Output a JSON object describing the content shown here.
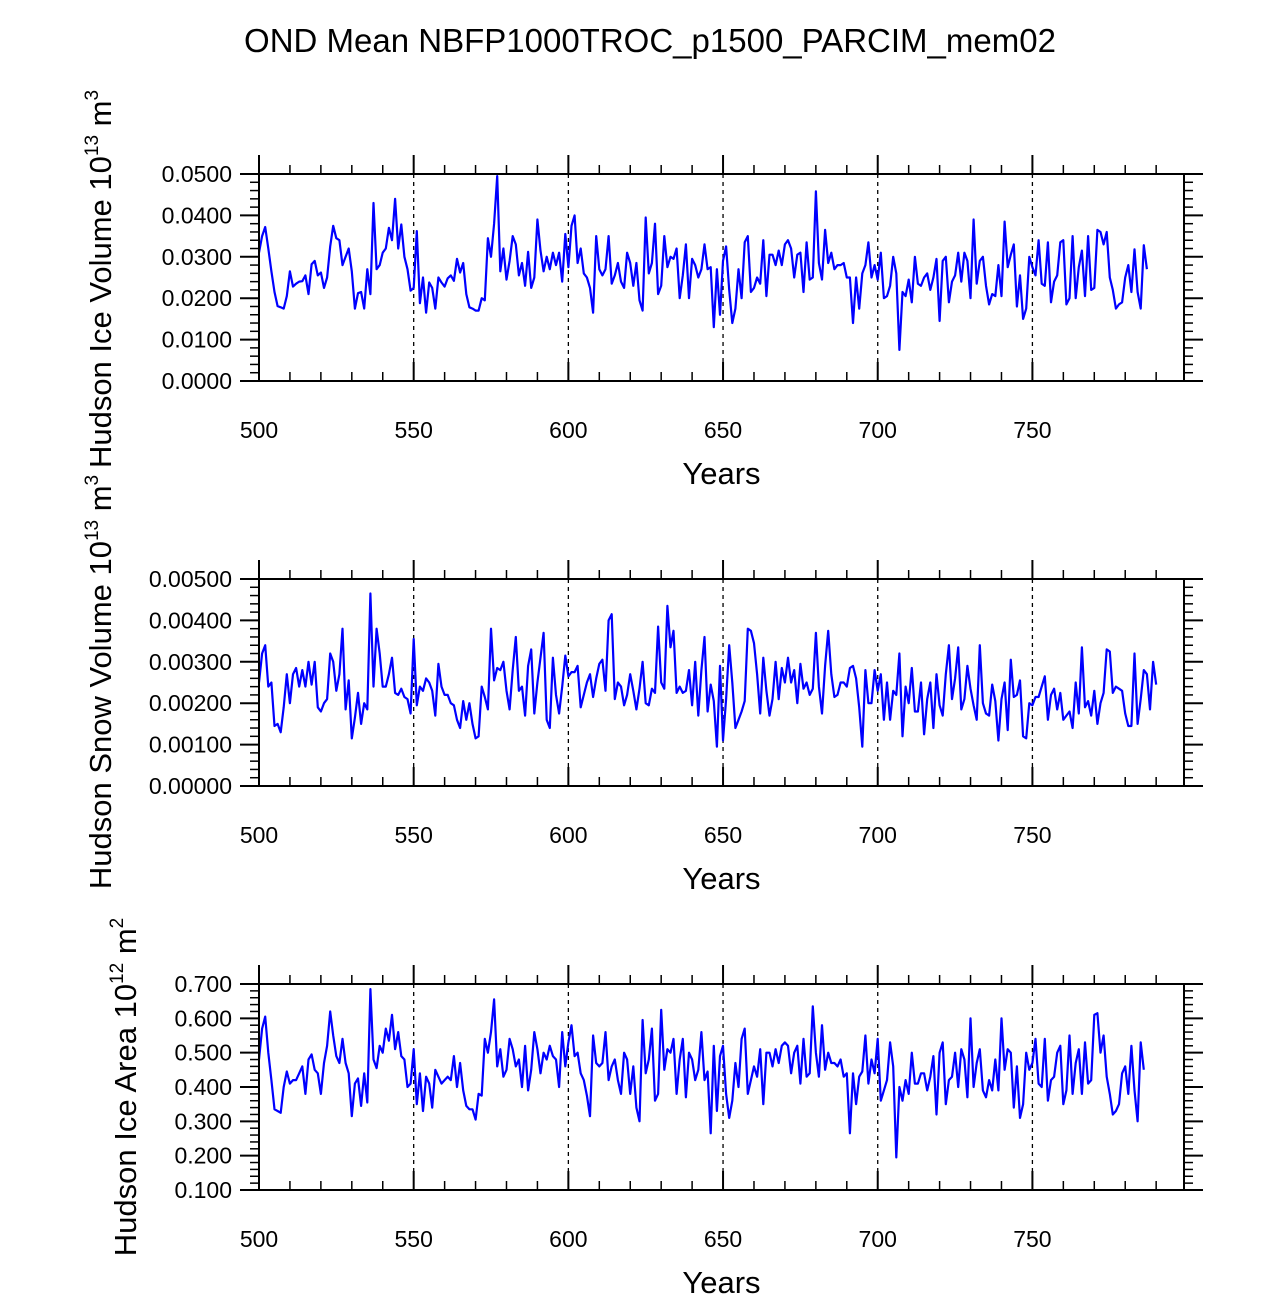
{
  "title": "OND Mean NBFP1000TROC_p1500_PARCIM_mem02",
  "line_color": "#0000ff",
  "chart_data": [
    {
      "type": "line",
      "ylabel": "Hudson Ice Volume 10",
      "ylabel_exp": "13",
      "ylabel_unit": "m",
      "ylabel_unit_exp": "3",
      "xlabel": "Years",
      "xlim": [
        500,
        799
      ],
      "ylim": [
        0.0,
        0.05
      ],
      "xticks": [
        500,
        550,
        600,
        650,
        700,
        750
      ],
      "xtick_labels": [
        "500",
        "550",
        "600",
        "650",
        "700",
        "750"
      ],
      "yticks": [
        0.0,
        0.01,
        0.02,
        0.03,
        0.04,
        0.05
      ],
      "ytick_labels": [
        "0.0000",
        "0.0100",
        "0.0200",
        "0.0300",
        "0.0400",
        "0.0500"
      ],
      "grid": "vertical dashed at x ticks",
      "series": [
        {
          "name": "Hudson Ice Volume",
          "x_start": 500,
          "values": [
            0.031,
            0.035,
            0.0372,
            0.032,
            0.0265,
            0.0215,
            0.0181,
            0.0178,
            0.0175,
            0.0205,
            0.0265,
            0.0228,
            0.0235,
            0.024,
            0.0241,
            0.0255,
            0.021,
            0.0282,
            0.029,
            0.0255,
            0.0262,
            0.0225,
            0.025,
            0.0325,
            0.0375,
            0.0345,
            0.034,
            0.028,
            0.03,
            0.032,
            0.0265,
            0.0175,
            0.0212,
            0.0215,
            0.0175,
            0.027,
            0.021,
            0.043,
            0.027,
            0.028,
            0.031,
            0.032,
            0.037,
            0.034,
            0.044,
            0.032,
            0.0378,
            0.03,
            0.027,
            0.0218,
            0.0225,
            0.0362,
            0.0188,
            0.025,
            0.0165,
            0.0238,
            0.0225,
            0.0175,
            0.025,
            0.0238,
            0.0228,
            0.0248,
            0.0255,
            0.0242,
            0.0295,
            0.0262,
            0.0285,
            0.021,
            0.0178,
            0.0175,
            0.017,
            0.017,
            0.02,
            0.0195,
            0.0345,
            0.03,
            0.038,
            0.0495,
            0.0265,
            0.032,
            0.0245,
            0.029,
            0.035,
            0.033,
            0.0255,
            0.0285,
            0.023,
            0.0312,
            0.0225,
            0.025,
            0.039,
            0.0315,
            0.0265,
            0.03,
            0.027,
            0.031,
            0.028,
            0.031,
            0.024,
            0.0355,
            0.0275,
            0.0375,
            0.04,
            0.0285,
            0.032,
            0.026,
            0.025,
            0.0225,
            0.0165,
            0.035,
            0.027,
            0.0255,
            0.027,
            0.035,
            0.0235,
            0.0255,
            0.0285,
            0.024,
            0.0225,
            0.031,
            0.0285,
            0.023,
            0.0285,
            0.0195,
            0.017,
            0.0395,
            0.026,
            0.0285,
            0.038,
            0.021,
            0.023,
            0.035,
            0.0275,
            0.03,
            0.0295,
            0.032,
            0.02,
            0.0255,
            0.033,
            0.02,
            0.0295,
            0.028,
            0.025,
            0.027,
            0.033,
            0.027,
            0.0275,
            0.013,
            0.027,
            0.016,
            0.029,
            0.0325,
            0.022,
            0.014,
            0.0175,
            0.027,
            0.02,
            0.0335,
            0.035,
            0.0215,
            0.0225,
            0.025,
            0.0235,
            0.034,
            0.0205,
            0.0305,
            0.0305,
            0.028,
            0.0315,
            0.028,
            0.033,
            0.034,
            0.032,
            0.025,
            0.0305,
            0.031,
            0.0215,
            0.0335,
            0.0245,
            0.025,
            0.0458,
            0.0285,
            0.0245,
            0.0365,
            0.0285,
            0.031,
            0.027,
            0.028,
            0.028,
            0.0285,
            0.025,
            0.025,
            0.014,
            0.025,
            0.0175,
            0.026,
            0.028,
            0.0335,
            0.025,
            0.028,
            0.0245,
            0.031,
            0.02,
            0.0205,
            0.023,
            0.03,
            0.026,
            0.0075,
            0.0215,
            0.0205,
            0.0245,
            0.019,
            0.03,
            0.0235,
            0.023,
            0.025,
            0.026,
            0.022,
            0.025,
            0.0295,
            0.0145,
            0.029,
            0.03,
            0.019,
            0.024,
            0.0255,
            0.031,
            0.024,
            0.031,
            0.029,
            0.02,
            0.039,
            0.0235,
            0.029,
            0.03,
            0.023,
            0.0185,
            0.021,
            0.0205,
            0.028,
            0.0205,
            0.0385,
            0.0275,
            0.0305,
            0.033,
            0.018,
            0.0255,
            0.015,
            0.0175,
            0.03,
            0.0275,
            0.0255,
            0.034,
            0.0235,
            0.023,
            0.0335,
            0.019,
            0.024,
            0.0255,
            0.0335,
            0.034,
            0.0185,
            0.02,
            0.035,
            0.02,
            0.0275,
            0.0315,
            0.0205,
            0.035,
            0.022,
            0.0225,
            0.0365,
            0.036,
            0.033,
            0.036,
            0.025,
            0.022,
            0.0175,
            0.0185,
            0.019,
            0.025,
            0.028,
            0.0215,
            0.0318,
            0.0215,
            0.0175,
            0.0328,
            0.027
          ]
        }
      ]
    },
    {
      "type": "line",
      "ylabel": "Hudson Snow Volume 10",
      "ylabel_exp": "13",
      "ylabel_unit": "m",
      "ylabel_unit_exp": "3",
      "xlabel": "Years",
      "xlim": [
        500,
        799
      ],
      "ylim": [
        0.0,
        0.005
      ],
      "xticks": [
        500,
        550,
        600,
        650,
        700,
        750
      ],
      "xtick_labels": [
        "500",
        "550",
        "600",
        "650",
        "700",
        "750"
      ],
      "yticks": [
        0.0,
        0.001,
        0.002,
        0.003,
        0.004,
        0.005
      ],
      "ytick_labels": [
        "0.00000",
        "0.00100",
        "0.00200",
        "0.00300",
        "0.00400",
        "0.00500"
      ],
      "grid": "vertical dashed at x ticks",
      "series": [
        {
          "name": "Hudson Snow Volume",
          "x_start": 500,
          "values": [
            0.0025,
            0.0032,
            0.0034,
            0.0024,
            0.0025,
            0.00145,
            0.0015,
            0.0013,
            0.0019,
            0.0027,
            0.002,
            0.0027,
            0.00285,
            0.0024,
            0.0028,
            0.0024,
            0.003,
            0.00245,
            0.003,
            0.0019,
            0.0018,
            0.002,
            0.0021,
            0.0032,
            0.003,
            0.0023,
            0.0027,
            0.0038,
            0.00185,
            0.00255,
            0.00115,
            0.00165,
            0.00225,
            0.0015,
            0.002,
            0.00185,
            0.00465,
            0.0024,
            0.0038,
            0.0032,
            0.0024,
            0.0024,
            0.0027,
            0.0031,
            0.00225,
            0.0022,
            0.00235,
            0.00215,
            0.0021,
            0.00175,
            0.00355,
            0.00195,
            0.0024,
            0.0023,
            0.0026,
            0.0025,
            0.0023,
            0.0017,
            0.00295,
            0.0024,
            0.0022,
            0.0022,
            0.002,
            0.00195,
            0.0016,
            0.0014,
            0.00205,
            0.0016,
            0.002,
            0.0015,
            0.00115,
            0.0012,
            0.0024,
            0.00215,
            0.00185,
            0.0038,
            0.00255,
            0.00285,
            0.0028,
            0.003,
            0.0023,
            0.00185,
            0.0028,
            0.0036,
            0.0023,
            0.0024,
            0.0017,
            0.0029,
            0.0033,
            0.00175,
            0.0025,
            0.0031,
            0.0037,
            0.0016,
            0.0014,
            0.0031,
            0.0022,
            0.00175,
            0.0024,
            0.00315,
            0.00265,
            0.00275,
            0.00275,
            0.0029,
            0.0019,
            0.0022,
            0.0025,
            0.0027,
            0.00215,
            0.0026,
            0.00295,
            0.00305,
            0.0023,
            0.004,
            0.00415,
            0.0021,
            0.0025,
            0.0024,
            0.00195,
            0.0022,
            0.0027,
            0.0023,
            0.00185,
            0.00235,
            0.003,
            0.002,
            0.00195,
            0.00235,
            0.00225,
            0.00385,
            0.0025,
            0.00235,
            0.00435,
            0.00335,
            0.00375,
            0.00225,
            0.0024,
            0.00225,
            0.0023,
            0.0028,
            0.00195,
            0.003,
            0.0017,
            0.0028,
            0.0036,
            0.0018,
            0.00245,
            0.00205,
            0.00095,
            0.0029,
            0.0011,
            0.0021,
            0.0034,
            0.0025,
            0.0014,
            0.0016,
            0.0018,
            0.00205,
            0.0038,
            0.00375,
            0.00345,
            0.0027,
            0.00175,
            0.0031,
            0.0023,
            0.0017,
            0.0021,
            0.003,
            0.0021,
            0.00285,
            0.0025,
            0.0031,
            0.0025,
            0.0028,
            0.002,
            0.00295,
            0.00235,
            0.0025,
            0.0022,
            0.00235,
            0.0037,
            0.0024,
            0.00175,
            0.0029,
            0.00375,
            0.0027,
            0.00215,
            0.0022,
            0.0025,
            0.0025,
            0.0024,
            0.00285,
            0.0029,
            0.0026,
            0.0019,
            0.00095,
            0.0028,
            0.002,
            0.002,
            0.0028,
            0.0023,
            0.0027,
            0.0016,
            0.0025,
            0.0016,
            0.0023,
            0.0022,
            0.0032,
            0.0012,
            0.0024,
            0.002,
            0.00285,
            0.0018,
            0.0018,
            0.0025,
            0.00125,
            0.0021,
            0.0025,
            0.0014,
            0.0027,
            0.00195,
            0.0017,
            0.0027,
            0.0034,
            0.0021,
            0.0026,
            0.00335,
            0.00185,
            0.0021,
            0.0029,
            0.00235,
            0.00195,
            0.0016,
            0.0034,
            0.002,
            0.00175,
            0.0017,
            0.00245,
            0.00205,
            0.0011,
            0.0021,
            0.0025,
            0.00135,
            0.00305,
            0.00215,
            0.0022,
            0.00255,
            0.0012,
            0.00115,
            0.002,
            0.00195,
            0.00215,
            0.00215,
            0.0024,
            0.00265,
            0.0016,
            0.0022,
            0.00235,
            0.00185,
            0.00225,
            0.0016,
            0.0017,
            0.0018,
            0.0014,
            0.0025,
            0.00175,
            0.00335,
            0.0019,
            0.00205,
            0.0017,
            0.0023,
            0.0015,
            0.002,
            0.00225,
            0.0033,
            0.00325,
            0.00225,
            0.0024,
            0.00235,
            0.0023,
            0.00175,
            0.00145,
            0.00145,
            0.0032,
            0.0015,
            0.0021,
            0.0028,
            0.0027,
            0.00185,
            0.003,
            0.00245
          ]
        }
      ]
    },
    {
      "type": "line",
      "ylabel": "Hudson Ice Area 10",
      "ylabel_exp": "12",
      "ylabel_unit": "m",
      "ylabel_unit_exp": "2",
      "xlabel": "Years",
      "xlim": [
        500,
        799
      ],
      "ylim": [
        0.1,
        0.7
      ],
      "xticks": [
        500,
        550,
        600,
        650,
        700,
        750
      ],
      "xtick_labels": [
        "500",
        "550",
        "600",
        "650",
        "700",
        "750"
      ],
      "yticks": [
        0.1,
        0.2,
        0.3,
        0.4,
        0.5,
        0.6,
        0.7
      ],
      "ytick_labels": [
        "0.100",
        "0.200",
        "0.300",
        "0.400",
        "0.500",
        "0.600",
        "0.700"
      ],
      "grid": "vertical dashed at x ticks",
      "series": [
        {
          "name": "Hudson Ice Area",
          "x_start": 500,
          "values": [
            0.48,
            0.57,
            0.605,
            0.5,
            0.42,
            0.335,
            0.33,
            0.325,
            0.4,
            0.445,
            0.41,
            0.42,
            0.42,
            0.44,
            0.46,
            0.38,
            0.48,
            0.495,
            0.45,
            0.44,
            0.38,
            0.47,
            0.52,
            0.62,
            0.55,
            0.49,
            0.47,
            0.54,
            0.47,
            0.44,
            0.315,
            0.41,
            0.425,
            0.345,
            0.44,
            0.355,
            0.685,
            0.48,
            0.455,
            0.52,
            0.5,
            0.57,
            0.535,
            0.61,
            0.51,
            0.56,
            0.49,
            0.48,
            0.4,
            0.41,
            0.51,
            0.35,
            0.44,
            0.33,
            0.43,
            0.41,
            0.34,
            0.45,
            0.43,
            0.41,
            0.42,
            0.43,
            0.42,
            0.49,
            0.4,
            0.47,
            0.39,
            0.345,
            0.335,
            0.335,
            0.305,
            0.38,
            0.375,
            0.54,
            0.5,
            0.56,
            0.655,
            0.46,
            0.51,
            0.43,
            0.45,
            0.54,
            0.51,
            0.46,
            0.48,
            0.4,
            0.52,
            0.39,
            0.45,
            0.56,
            0.51,
            0.44,
            0.5,
            0.48,
            0.52,
            0.49,
            0.48,
            0.4,
            0.56,
            0.46,
            0.53,
            0.58,
            0.49,
            0.5,
            0.44,
            0.42,
            0.375,
            0.315,
            0.55,
            0.47,
            0.46,
            0.47,
            0.56,
            0.42,
            0.46,
            0.48,
            0.42,
            0.38,
            0.5,
            0.48,
            0.38,
            0.46,
            0.34,
            0.3,
            0.595,
            0.44,
            0.48,
            0.57,
            0.36,
            0.38,
            0.625,
            0.45,
            0.51,
            0.5,
            0.54,
            0.38,
            0.48,
            0.54,
            0.37,
            0.5,
            0.48,
            0.42,
            0.45,
            0.56,
            0.42,
            0.445,
            0.265,
            0.52,
            0.33,
            0.49,
            0.52,
            0.38,
            0.31,
            0.36,
            0.47,
            0.4,
            0.54,
            0.57,
            0.38,
            0.42,
            0.46,
            0.43,
            0.51,
            0.35,
            0.5,
            0.5,
            0.46,
            0.51,
            0.47,
            0.52,
            0.53,
            0.52,
            0.44,
            0.5,
            0.52,
            0.41,
            0.54,
            0.43,
            0.44,
            0.635,
            0.5,
            0.43,
            0.58,
            0.45,
            0.5,
            0.47,
            0.47,
            0.46,
            0.48,
            0.43,
            0.44,
            0.265,
            0.44,
            0.35,
            0.43,
            0.445,
            0.55,
            0.41,
            0.48,
            0.44,
            0.54,
            0.36,
            0.39,
            0.42,
            0.53,
            0.46,
            0.195,
            0.4,
            0.36,
            0.42,
            0.38,
            0.5,
            0.41,
            0.41,
            0.44,
            0.44,
            0.39,
            0.43,
            0.49,
            0.32,
            0.5,
            0.53,
            0.35,
            0.42,
            0.43,
            0.5,
            0.4,
            0.51,
            0.48,
            0.37,
            0.6,
            0.4,
            0.47,
            0.51,
            0.39,
            0.37,
            0.42,
            0.39,
            0.48,
            0.39,
            0.6,
            0.45,
            0.51,
            0.5,
            0.34,
            0.46,
            0.31,
            0.35,
            0.5,
            0.45,
            0.47,
            0.54,
            0.41,
            0.4,
            0.54,
            0.36,
            0.42,
            0.43,
            0.5,
            0.52,
            0.35,
            0.39,
            0.55,
            0.38,
            0.47,
            0.51,
            0.38,
            0.53,
            0.41,
            0.42,
            0.61,
            0.615,
            0.5,
            0.55,
            0.43,
            0.38,
            0.32,
            0.33,
            0.35,
            0.44,
            0.46,
            0.38,
            0.52,
            0.39,
            0.3,
            0.53,
            0.45
          ]
        }
      ]
    }
  ]
}
